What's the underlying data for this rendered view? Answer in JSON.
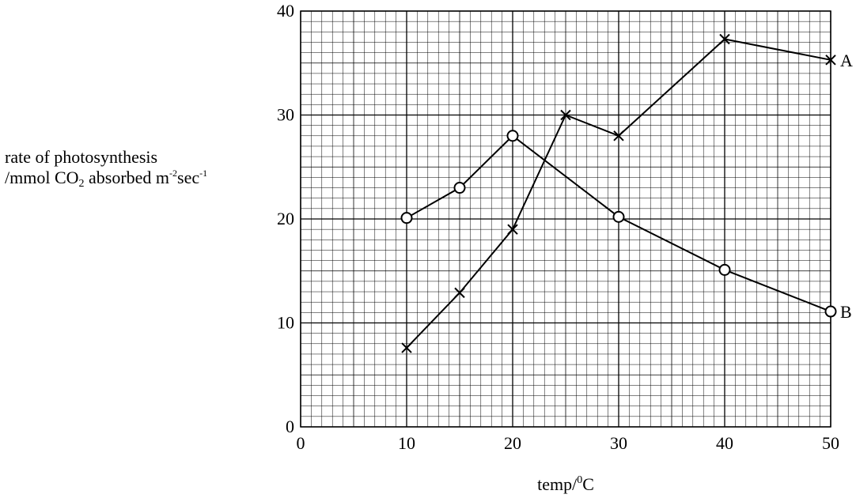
{
  "chart_data": {
    "type": "line",
    "title": "",
    "xlabel": "temp/",
    "xlabel_sup": "0",
    "xlabel_unit": "C",
    "ylabel": {
      "line1": "rate of photosynthesis",
      "line2_prefix": "/mmol CO",
      "line2_sub": "2",
      "line2_mid": " absorbed m",
      "line2_sup1": "-2",
      "line2_mid2": "sec",
      "line2_sup2": "-1"
    },
    "xlim": [
      0,
      50
    ],
    "ylim": [
      0,
      40
    ],
    "xticks": [
      0,
      10,
      20,
      30,
      40,
      50
    ],
    "yticks": [
      0,
      10,
      20,
      30,
      40
    ],
    "grid": true,
    "series": [
      {
        "name": "A",
        "marker": "cross",
        "x": [
          10,
          15,
          20,
          25,
          30,
          40,
          50
        ],
        "y": [
          7.6,
          12.9,
          19,
          30,
          28,
          37.3,
          35.3
        ]
      },
      {
        "name": "B",
        "marker": "circle",
        "x": [
          10,
          15,
          20,
          30,
          40,
          50
        ],
        "y": [
          20.1,
          23,
          28,
          20.2,
          15.1,
          11.1
        ]
      }
    ]
  }
}
